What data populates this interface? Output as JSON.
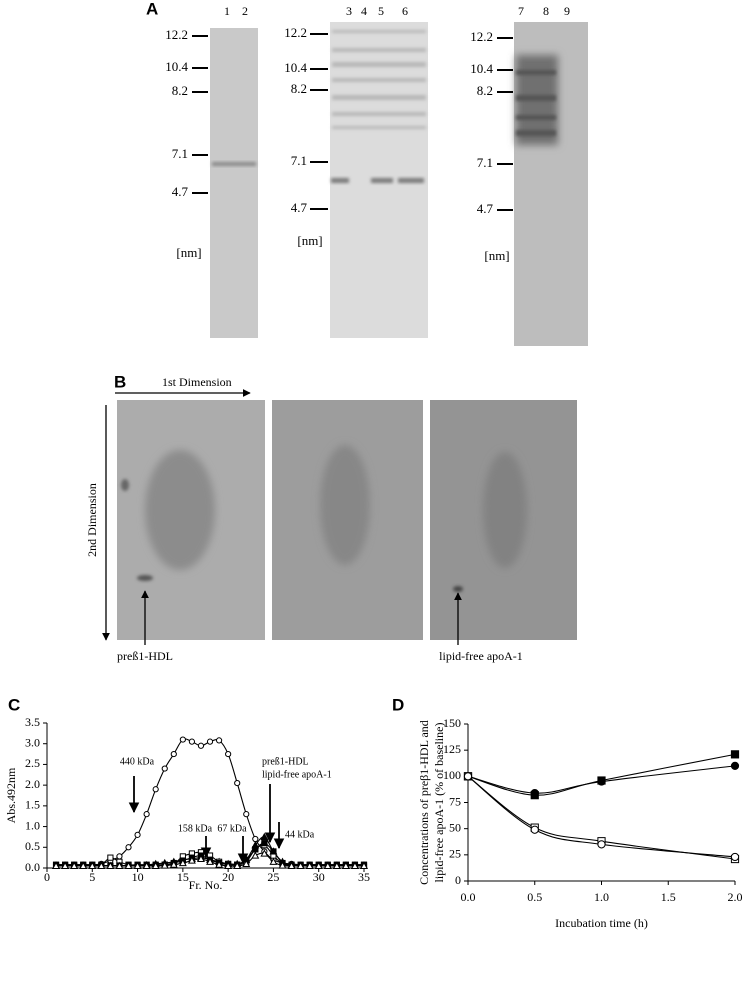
{
  "panel_a": {
    "label": "A",
    "gels": [
      {
        "lanes": [
          "1",
          "2"
        ],
        "markers": [
          "12.2",
          "10.4",
          "8.2",
          "7.1",
          "4.7"
        ],
        "unit": "[nm]"
      },
      {
        "lanes": [
          "3",
          "4",
          "5",
          "6"
        ],
        "markers": [
          "12.2",
          "10.4",
          "8.2",
          "7.1",
          "4.7"
        ],
        "unit": "[nm]"
      },
      {
        "lanes": [
          "7",
          "8",
          "9"
        ],
        "markers": [
          "12.2",
          "10.4",
          "8.2",
          "7.1",
          "4.7"
        ],
        "unit": "[nm]"
      }
    ]
  },
  "panel_b": {
    "label": "B",
    "x_axis": "1st Dimension",
    "y_axis": "2nd Dimension",
    "annotations": [
      "preß1-HDL",
      "lipid-free apoA-1"
    ]
  },
  "chart_data": [
    {
      "type": "line",
      "label": "C",
      "x_label": "Fr. No.",
      "y_label": "Abs.492nm",
      "x": [
        1,
        2,
        3,
        4,
        5,
        6,
        7,
        8,
        9,
        10,
        11,
        12,
        13,
        14,
        15,
        16,
        17,
        18,
        19,
        20,
        21,
        22,
        23,
        24,
        25,
        26,
        27,
        28,
        29,
        30,
        31,
        32,
        33,
        34,
        35
      ],
      "xlim": [
        0,
        35
      ],
      "ylim": [
        0,
        3.5
      ],
      "xticks": [
        0,
        5,
        10,
        15,
        20,
        25,
        30,
        35
      ],
      "yticks": [
        {
          "value": 0,
          "label": "0.0"
        },
        0.5,
        {
          "value": 1,
          "label": "1.0"
        },
        1.5,
        {
          "value": 2,
          "label": "2.0"
        },
        2.5,
        {
          "value": 3,
          "label": "3.0"
        },
        3.5
      ],
      "series": [
        {
          "color": "#000000",
          "marker": "circle",
          "filled": false,
          "values": [
            0.08,
            0.08,
            0.08,
            0.08,
            0.08,
            0.1,
            0.18,
            0.28,
            0.5,
            0.8,
            1.3,
            1.9,
            2.4,
            2.75,
            3.1,
            3.05,
            2.95,
            3.05,
            3.08,
            2.75,
            2.05,
            1.3,
            0.7,
            0.4,
            0.2,
            0.12,
            0.1,
            0.08,
            0.08,
            0.08,
            0.08,
            0.08,
            0.08,
            0.08,
            0.08
          ]
        },
        {
          "color": "#000000",
          "marker": "triangle",
          "filled": true,
          "values": [
            0.05,
            0.05,
            0.05,
            0.05,
            0.05,
            0.05,
            0.05,
            0.05,
            0.05,
            0.05,
            0.07,
            0.1,
            0.12,
            0.15,
            0.2,
            0.22,
            0.25,
            0.2,
            0.15,
            0.1,
            0.1,
            0.2,
            0.55,
            0.75,
            0.4,
            0.15,
            0.07,
            0.05,
            0.05,
            0.05,
            0.05,
            0.05,
            0.05,
            0.05,
            0.05
          ]
        },
        {
          "color": "#000000",
          "marker": "square",
          "filled": false,
          "values": [
            0.08,
            0.08,
            0.08,
            0.08,
            0.08,
            0.08,
            0.25,
            0.15,
            0.08,
            0.08,
            0.08,
            0.08,
            0.08,
            0.1,
            0.28,
            0.35,
            0.38,
            0.3,
            0.15,
            0.1,
            0.08,
            0.15,
            0.45,
            0.55,
            0.3,
            0.1,
            0.08,
            0.08,
            0.08,
            0.08,
            0.08,
            0.08,
            0.08,
            0.08,
            0.08
          ]
        },
        {
          "color": "#000000",
          "marker": "square",
          "filled": true,
          "values": [
            0.06,
            0.06,
            0.06,
            0.06,
            0.06,
            0.06,
            0.06,
            0.06,
            0.06,
            0.06,
            0.06,
            0.06,
            0.08,
            0.12,
            0.18,
            0.25,
            0.3,
            0.2,
            0.12,
            0.08,
            0.08,
            0.2,
            0.45,
            0.6,
            0.4,
            0.12,
            0.06,
            0.06,
            0.06,
            0.06,
            0.06,
            0.06,
            0.06,
            0.06,
            0.06
          ]
        },
        {
          "color": "#000000",
          "marker": "triangle",
          "filled": false,
          "values": [
            0.05,
            0.05,
            0.05,
            0.05,
            0.05,
            0.05,
            0.05,
            0.05,
            0.05,
            0.05,
            0.05,
            0.05,
            0.06,
            0.08,
            0.12,
            0.18,
            0.22,
            0.15,
            0.08,
            0.05,
            0.05,
            0.1,
            0.3,
            0.35,
            0.15,
            0.06,
            0.05,
            0.05,
            0.05,
            0.05,
            0.05,
            0.05,
            0.05,
            0.05,
            0.05
          ]
        }
      ],
      "annotations": [
        "440 kDa",
        "158 kDa",
        "67 kDa",
        "preß1-HDL",
        "lipid-free apoA-1",
        "44 kDa"
      ]
    },
    {
      "type": "line",
      "label": "D",
      "x_label": "Incubation time (h)",
      "y_label": [
        "Concentrations of preβ1-HDL and",
        "lipid-free apoA-1 (% of baseline)"
      ],
      "x": [
        0,
        0.5,
        1,
        2
      ],
      "xlim": [
        0,
        2
      ],
      "ylim": [
        0,
        150
      ],
      "xticks": [
        {
          "value": 0,
          "label": "0.0"
        },
        0.5,
        {
          "value": 1,
          "label": "1.0"
        },
        1.5,
        {
          "value": 2,
          "label": "2.0"
        }
      ],
      "yticks": [
        0,
        25,
        50,
        75,
        100,
        125,
        150
      ],
      "series": [
        {
          "color": "#000000",
          "marker": "square",
          "filled": true,
          "values": [
            100,
            82,
            96,
            121
          ]
        },
        {
          "color": "#000000",
          "marker": "circle",
          "filled": true,
          "values": [
            100,
            84,
            95,
            110
          ]
        },
        {
          "color": "#000000",
          "marker": "square",
          "filled": false,
          "values": [
            100,
            51,
            38,
            21
          ]
        },
        {
          "color": "#000000",
          "marker": "circle",
          "filled": false,
          "values": [
            100,
            49,
            35,
            23
          ]
        }
      ]
    }
  ]
}
